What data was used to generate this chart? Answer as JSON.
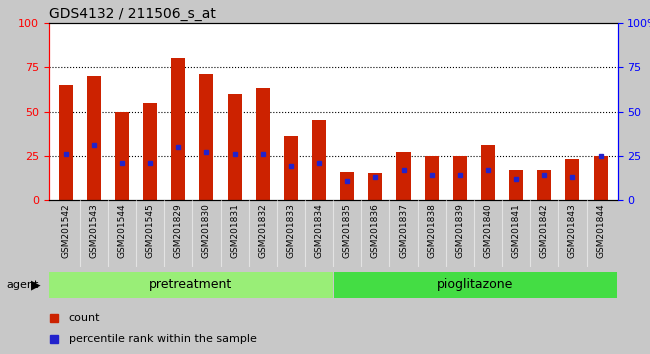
{
  "title": "GDS4132 / 211506_s_at",
  "categories": [
    "GSM201542",
    "GSM201543",
    "GSM201544",
    "GSM201545",
    "GSM201829",
    "GSM201830",
    "GSM201831",
    "GSM201832",
    "GSM201833",
    "GSM201834",
    "GSM201835",
    "GSM201836",
    "GSM201837",
    "GSM201838",
    "GSM201839",
    "GSM201840",
    "GSM201841",
    "GSM201842",
    "GSM201843",
    "GSM201844"
  ],
  "counts": [
    65,
    70,
    50,
    55,
    80,
    71,
    60,
    63,
    36,
    45,
    16,
    15,
    27,
    25,
    25,
    31,
    17,
    17,
    23,
    25
  ],
  "percentile_ranks": [
    26,
    31,
    21,
    21,
    30,
    27,
    26,
    26,
    19,
    21,
    11,
    13,
    17,
    14,
    14,
    17,
    12,
    14,
    13,
    25
  ],
  "bar_color": "#cc2200",
  "marker_color": "#2222cc",
  "pretreatment_color": "#99ee77",
  "pioglitazone_color": "#44dd44",
  "label_bg_color": "#c8c8c8",
  "background_color": "#c8c8c8",
  "plot_bg_color": "#ffffff",
  "legend_count_label": "count",
  "legend_percentile_label": "percentile rank within the sample",
  "title_fontsize": 10,
  "bar_width": 0.5,
  "ylim": [
    0,
    100
  ],
  "yticks": [
    0,
    25,
    50,
    75,
    100
  ],
  "n_pretreatment": 10,
  "n_pioglitazone": 10
}
